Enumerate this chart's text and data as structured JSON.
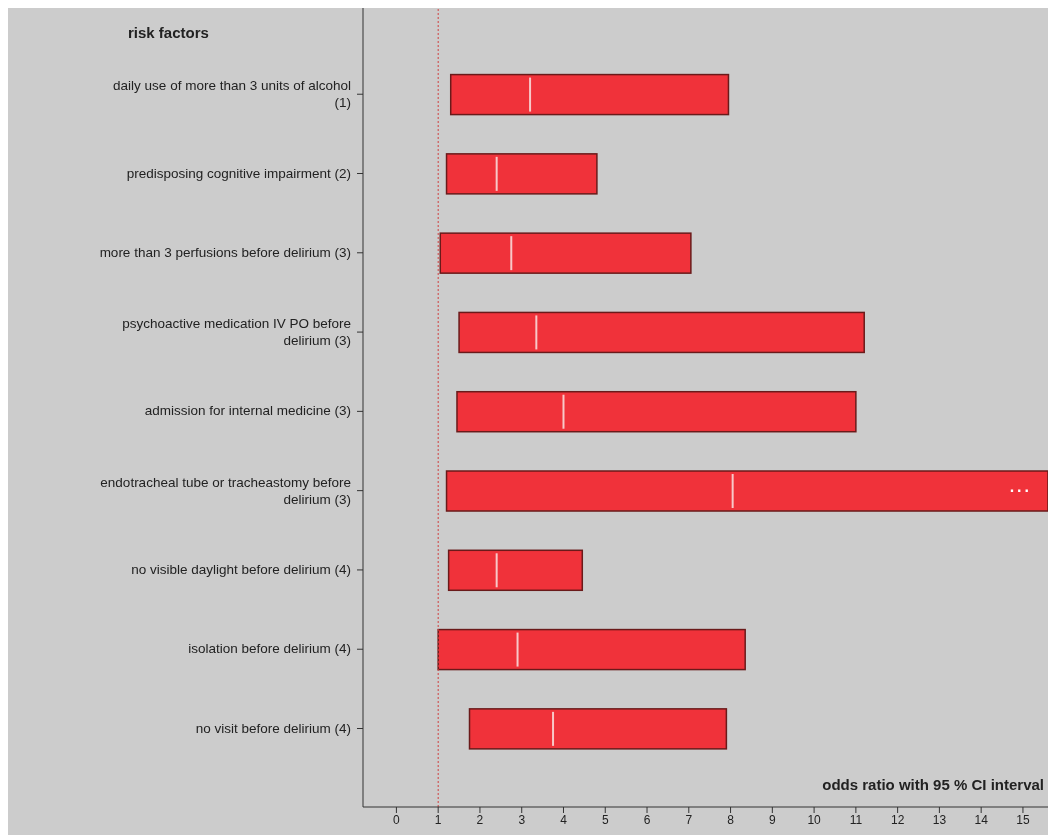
{
  "chart_data": {
    "type": "box",
    "orientation": "horizontal",
    "ylabel": "risk factors",
    "xlabel": "odds ratio with 95 % CI interval",
    "categories": [
      "daily use of more than 3 units of alcohol (1)",
      "predisposing cognitive impairment (2)",
      "more than 3 perfusions before delirium (3)",
      "psychoactive medication IV PO before delirium (3)",
      "admission for internal medicine (3)",
      "endotracheal tube or tracheastomy before delirium (3)",
      "no visible daylight before delirium (4)",
      "isolation before delirium (4)",
      "no visit before delirium (4)"
    ],
    "series": [
      {
        "color": "#f0323a",
        "boxes": [
          {
            "low": 1.3,
            "q1": 1.3,
            "median": 3.2,
            "q3": 7.95,
            "high": 7.95
          },
          {
            "low": 1.2,
            "q1": 1.2,
            "median": 2.4,
            "q3": 4.8,
            "high": 4.8
          },
          {
            "low": 1.05,
            "q1": 1.05,
            "median": 2.75,
            "q3": 7.05,
            "high": 7.05
          },
          {
            "low": 1.5,
            "q1": 1.5,
            "median": 3.35,
            "q3": 11.2,
            "high": 11.2
          },
          {
            "low": 1.45,
            "q1": 1.45,
            "median": 4.0,
            "q3": 11.0,
            "high": 11.0
          },
          {
            "low": 1.2,
            "q1": 1.2,
            "median": 8.05,
            "q3": 15.6,
            "high": 15.6
          },
          {
            "low": 1.25,
            "q1": 1.25,
            "median": 2.4,
            "q3": 4.45,
            "high": 4.45
          },
          {
            "low": 1.0,
            "q1": 1.0,
            "median": 2.9,
            "q3": 8.35,
            "high": 8.35
          },
          {
            "low": 1.75,
            "q1": 1.75,
            "median": 3.75,
            "q3": 7.9,
            "high": 7.9
          }
        ]
      }
    ],
    "annotations": [
      "..."
    ],
    "xlim": [
      -0.8,
      15.6
    ],
    "xticks": [
      0,
      1,
      2,
      3,
      4,
      5,
      6,
      7,
      8,
      9,
      10,
      11,
      12,
      13,
      14,
      15
    ],
    "ref_lines": [
      {
        "axis": "x",
        "value": 1,
        "color": "#d04040",
        "line_style": "dotted"
      }
    ],
    "legend": false
  }
}
